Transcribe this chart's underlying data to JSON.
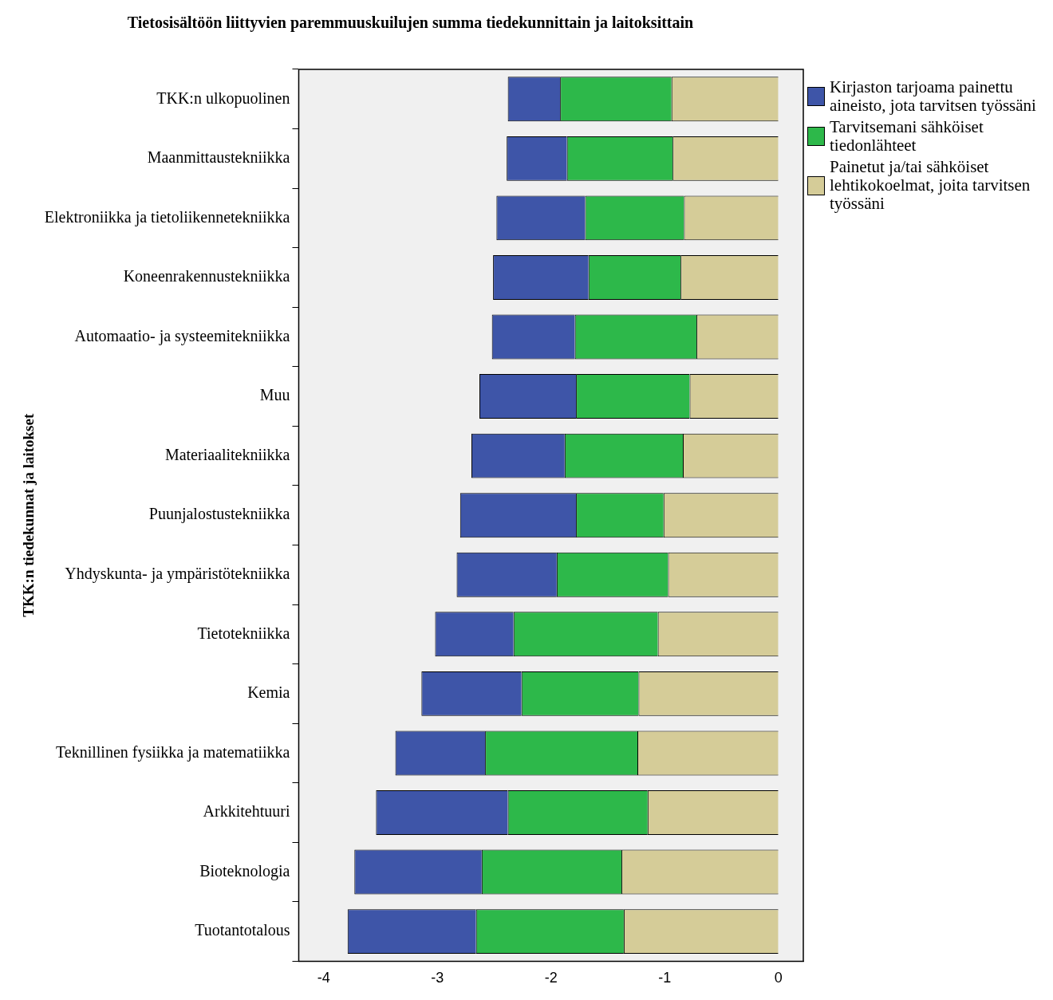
{
  "chart_data": {
    "type": "bar",
    "orientation": "horizontal",
    "stacked": true,
    "title": "Tietosisältöön liittyvien paremmuuskuilujen summa tiedekunnittain ja laitoksittain",
    "ylabel": "TKK:n tiedekunnat ja laitokset",
    "categories": [
      "TKK:n ulkopuolinen",
      "Maanmittaustekniikka",
      "Elektroniikka ja tietoliikennetekniikka",
      "Koneenrakennustekniikka",
      "Automaatio- ja systeemitekniikka",
      "Muu",
      "Materiaalitekniikka",
      "Puunjalostustekniikka",
      "Yhdyskunta- ja ympäristötekniikka",
      "Tietotekniikka",
      "Kemia",
      "Teknillinen fysiikka ja matematiikka",
      "Arkkitehtuuri",
      "Bioteknologia",
      "Tuotantotalous"
    ],
    "series": [
      {
        "name": "Painetut ja/tai sähköiset lehtikokoelmat, joita tarvitsen työssäni",
        "color": "#d5cc98",
        "values": [
          -0.94,
          -0.93,
          -0.83,
          -0.86,
          -0.72,
          -0.78,
          -0.84,
          -1.01,
          -0.97,
          -1.06,
          -1.23,
          -1.24,
          -1.15,
          -1.38,
          -1.36
        ]
      },
      {
        "name": "Tarvitsemani sähköiset tiedonlähteet",
        "color": "#2db84a",
        "values": [
          -0.98,
          -0.93,
          -0.87,
          -0.81,
          -1.07,
          -1.0,
          -1.04,
          -0.77,
          -0.98,
          -1.27,
          -1.03,
          -1.34,
          -1.23,
          -1.23,
          -1.3
        ]
      },
      {
        "name": "Kirjaston tarjoama painettu aineisto, jota tarvitsen työssäni",
        "color": "#3e55a8",
        "values": [
          -0.46,
          -0.53,
          -0.78,
          -0.84,
          -0.73,
          -0.85,
          -0.82,
          -1.02,
          -0.88,
          -0.69,
          -0.88,
          -0.79,
          -1.16,
          -1.12,
          -1.13
        ]
      }
    ],
    "xlim": [
      -4.22,
      0.22
    ],
    "xticks": [
      -4,
      -3,
      -2,
      -1,
      0
    ],
    "grid": false,
    "legend": "right"
  }
}
